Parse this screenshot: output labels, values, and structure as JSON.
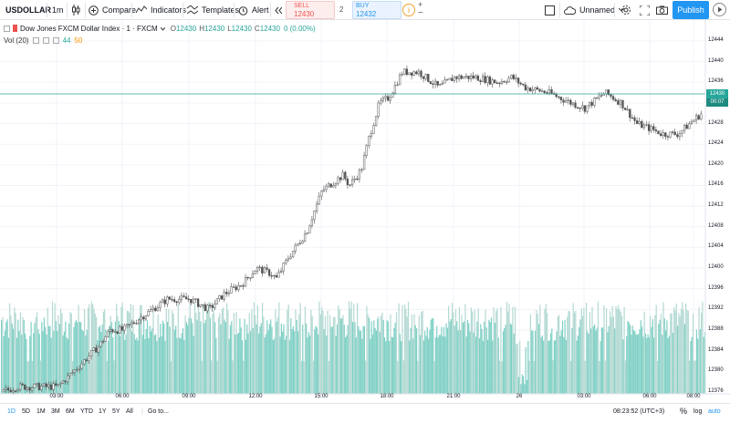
{
  "toolbar": {
    "symbol": "USDOLLAR",
    "interval": "1m",
    "compare_label": "Compare",
    "indicators_label": "Indicators",
    "templates_label": "Templates",
    "alert_label": "Alert",
    "sell_label": "SELL",
    "sell_value": "12430",
    "spread": "2",
    "buy_label": "BUY",
    "buy_value": "12432",
    "plus": "+",
    "minus": "−",
    "unnamed_label": "Unnamed",
    "publish_label": "Publish",
    "icons": [
      "candles-icon",
      "plus-circle-icon",
      "indicators-icon",
      "templates-icon",
      "alarm-icon",
      "rewind-icon",
      "info-icon",
      "square-icon",
      "cloud-icon",
      "gear-icon",
      "fullscreen-icon",
      "camera-icon",
      "play-icon"
    ]
  },
  "legend": {
    "title": "Dow Jones FXCM Dollar Index · 1 · FXCM",
    "o_label": "O",
    "o_value": "12430",
    "h_label": "H",
    "h_value": "12430",
    "l_label": "L",
    "l_value": "12430",
    "c_label": "C",
    "c_value": "12430",
    "change": "0 (0.00%)",
    "vol_label": "Vol (20)",
    "vol_value": "44",
    "vol_ma": "50"
  },
  "price_axis": {
    "ticks": [
      "12444",
      "12440",
      "12436",
      "12432",
      "12428",
      "12424",
      "12420",
      "12416",
      "12412",
      "12408",
      "12404",
      "12400",
      "12396",
      "12392",
      "12388",
      "12384",
      "12380",
      "12376"
    ],
    "current_price": "12430",
    "countdown": "00:07"
  },
  "time_axis": {
    "ticks": [
      "03:00",
      "06:00",
      "09:00",
      "12:00",
      "15:00",
      "18:00",
      "21:00",
      "26",
      "03:00",
      "06:00",
      "08:00"
    ]
  },
  "bottom_bar": {
    "ranges": [
      "1D",
      "5D",
      "1M",
      "3M",
      "6M",
      "YTD",
      "1Y",
      "5Y",
      "All"
    ],
    "active_range": "1D",
    "goto_label": "Go to...",
    "clock": "08:23:52 (UTC+3)",
    "percent_label": "%",
    "log_label": "log",
    "auto_label": "auto"
  },
  "colors": {
    "up": "#26a69a",
    "down": "#ef5350",
    "candle": "#555555",
    "volume": "#7fd0c5",
    "accent": "#2196f3"
  },
  "chart_data": {
    "type": "candlestick",
    "title": "Dow Jones FXCM Dollar Index",
    "ylim": [
      12374,
      12447
    ],
    "x_ticks": [
      "03:00",
      "06:00",
      "09:00",
      "12:00",
      "15:00",
      "18:00",
      "21:00",
      "26",
      "03:00",
      "06:00",
      "08:00"
    ],
    "price_path": [
      [
        "01:30",
        12376
      ],
      [
        "02:00",
        12377
      ],
      [
        "03:00",
        12377
      ],
      [
        "03:30",
        12380
      ],
      [
        "04:30",
        12385
      ],
      [
        "05:00",
        12388
      ],
      [
        "06:00",
        12388
      ],
      [
        "07:00",
        12391
      ],
      [
        "08:00",
        12394
      ],
      [
        "09:00",
        12394
      ],
      [
        "09:30",
        12392
      ],
      [
        "10:00",
        12395
      ],
      [
        "11:00",
        12397
      ],
      [
        "12:00",
        12400
      ],
      [
        "13:00",
        12399
      ],
      [
        "13:30",
        12398
      ],
      [
        "14:00",
        12402
      ],
      [
        "14:30",
        12407
      ],
      [
        "15:00",
        12415
      ],
      [
        "16:00",
        12418
      ],
      [
        "16:30",
        12416
      ],
      [
        "17:00",
        12419
      ],
      [
        "17:30",
        12425
      ],
      [
        "18:00",
        12432
      ],
      [
        "18:30",
        12433
      ],
      [
        "19:00",
        12438
      ],
      [
        "19:30",
        12438
      ],
      [
        "20:00",
        12435
      ],
      [
        "21:00",
        12437
      ],
      [
        "22:00",
        12437
      ],
      [
        "23:00",
        12436
      ],
      [
        "00:00",
        12437
      ],
      [
        "00:30",
        12435
      ],
      [
        "01:30",
        12434
      ],
      [
        "02:30",
        12432
      ],
      [
        "03:00",
        12431
      ],
      [
        "04:00",
        12434
      ],
      [
        "04:30",
        12432
      ],
      [
        "05:30",
        12428
      ],
      [
        "06:00",
        12427
      ],
      [
        "06:30",
        12426
      ],
      [
        "07:30",
        12426
      ],
      [
        "08:00",
        12428
      ],
      [
        "08:20",
        12430
      ]
    ],
    "volume_level": 0.9
  }
}
